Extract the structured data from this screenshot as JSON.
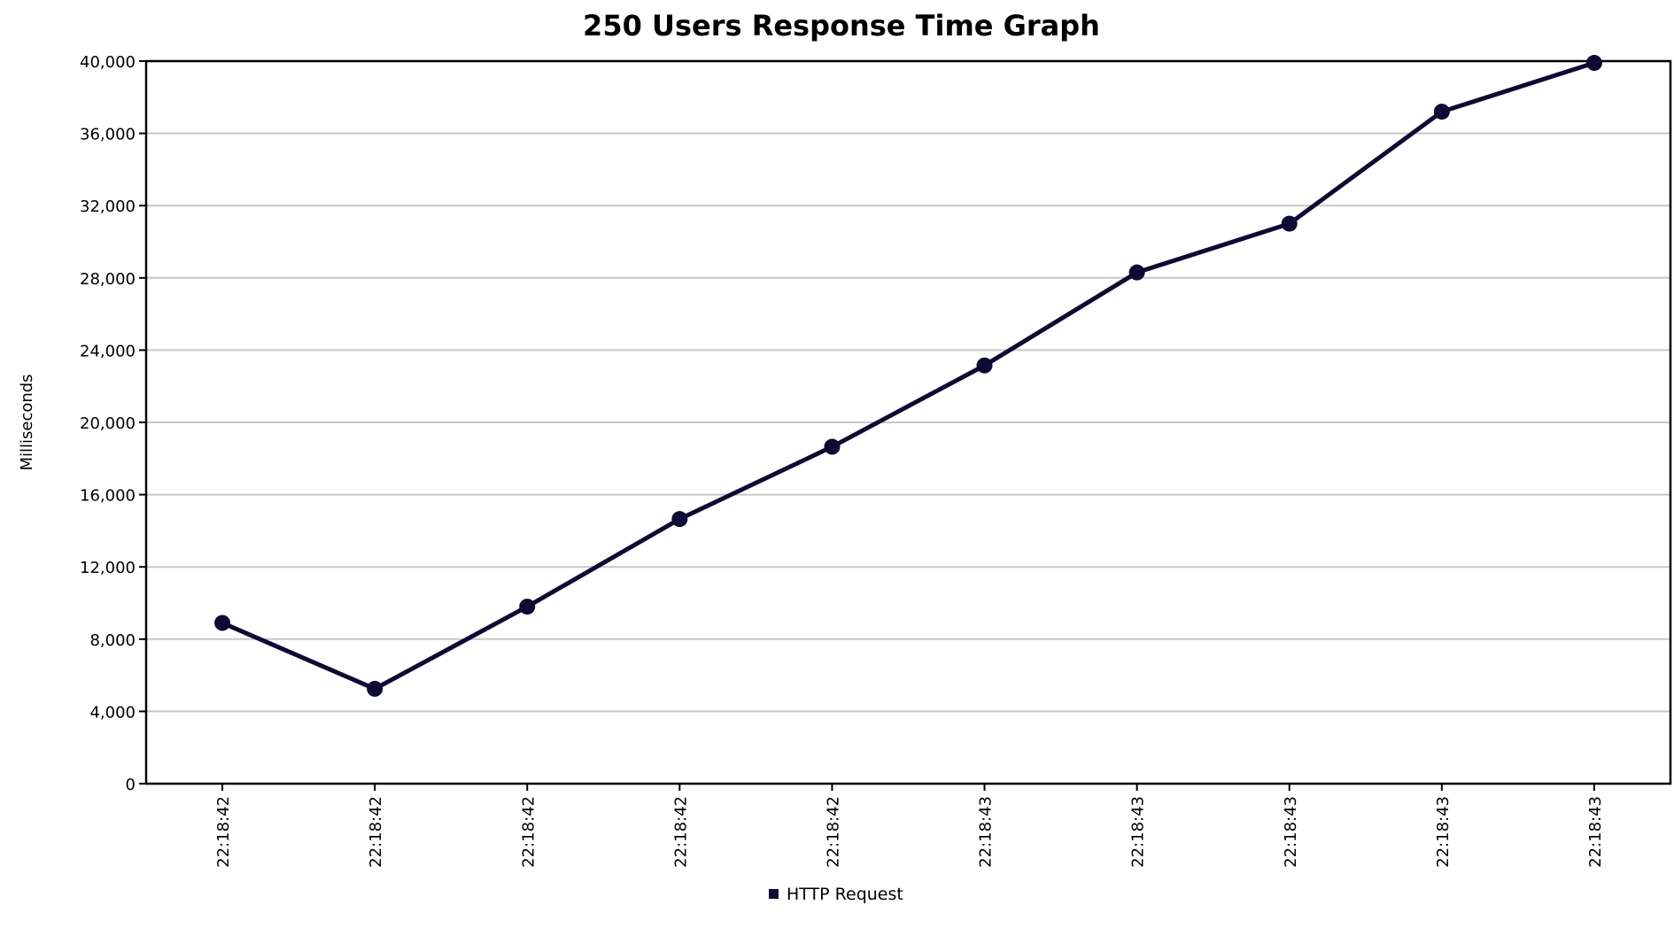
{
  "chart_data": {
    "type": "line",
    "title": "250 Users Response Time Graph",
    "xlabel": "",
    "ylabel": "Milliseconds",
    "categories": [
      "22:18:42",
      "22:18:42",
      "22:18:42",
      "22:18:42",
      "22:18:42",
      "22:18:43",
      "22:18:43",
      "22:18:43",
      "22:18:43",
      "22:18:43"
    ],
    "series": [
      {
        "name": "HTTP Request",
        "color": "#0d0a33",
        "values": [
          8900,
          5250,
          9800,
          14650,
          18650,
          23150,
          28300,
          31000,
          37200,
          39900
        ]
      }
    ],
    "ylim": [
      0,
      40000
    ],
    "yticks": [
      0,
      4000,
      8000,
      12000,
      16000,
      20000,
      24000,
      28000,
      32000,
      36000,
      40000
    ],
    "ytick_labels": [
      "0",
      "4,000",
      "8,000",
      "12,000",
      "16,000",
      "20,000",
      "24,000",
      "28,000",
      "32,000",
      "36,000",
      "40,000"
    ],
    "grid": true,
    "legend_position": "bottom-center",
    "colors": {
      "line": "#0d0a33",
      "grid": "#c8c8c8",
      "axis": "#000000"
    }
  }
}
